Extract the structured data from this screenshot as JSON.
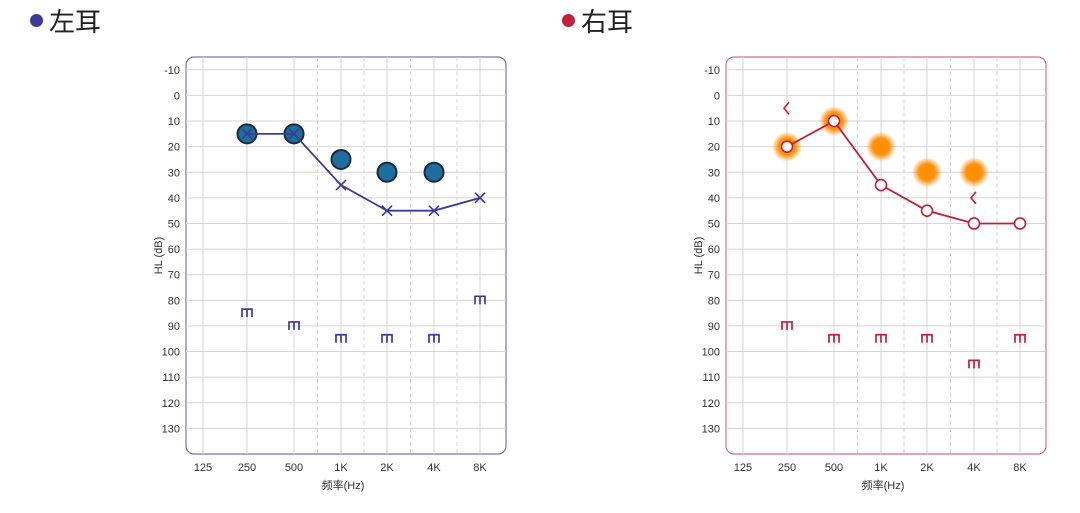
{
  "chart_data": [
    {
      "type": "line",
      "heading": "左耳",
      "xlabel": "频率(Hz)",
      "ylabel": "HL (dB)",
      "x_ticks": [
        "125",
        "250",
        "500",
        "1K",
        "2K",
        "4K",
        "8K"
      ],
      "y_ticks": [
        "-10",
        "0",
        "10",
        "20",
        "30",
        "40",
        "50",
        "60",
        "70",
        "80",
        "90",
        "100",
        "110",
        "120",
        "130"
      ],
      "ylim": [
        -15,
        140
      ],
      "y_reversed": true,
      "colors": {
        "accent": "#3b3b98",
        "border": "#7a74b8",
        "circle_fill": "#1b6e9e"
      },
      "series": [
        {
          "marker": "large-circle",
          "x": [
            "250",
            "500",
            "1K",
            "2K",
            "4K"
          ],
          "values": [
            15,
            15,
            25,
            30,
            30
          ]
        },
        {
          "marker": "x",
          "line": true,
          "x": [
            "250",
            "500",
            "1K",
            "2K",
            "4K",
            "8K"
          ],
          "values": [
            15,
            15,
            35,
            45,
            45,
            40
          ]
        },
        {
          "marker": "bracket",
          "x": [
            "250",
            "500",
            "1K",
            "2K",
            "4K",
            "8K"
          ],
          "values": [
            85,
            90,
            95,
            95,
            95,
            80
          ]
        }
      ]
    },
    {
      "type": "line",
      "heading": "右耳",
      "xlabel": "频率(Hz)",
      "ylabel": "HL (dB)",
      "x_ticks": [
        "125",
        "250",
        "500",
        "1K",
        "2K",
        "4K",
        "8K"
      ],
      "y_ticks": [
        "-10",
        "0",
        "10",
        "20",
        "30",
        "40",
        "50",
        "60",
        "70",
        "80",
        "90",
        "100",
        "110",
        "120",
        "130"
      ],
      "ylim": [
        -15,
        140
      ],
      "y_reversed": true,
      "colors": {
        "accent": "#c0203a",
        "border": "#d4728a",
        "glow": "#ff8c00"
      },
      "series": [
        {
          "marker": "glow-circle",
          "x": [
            "250",
            "500",
            "1K",
            "2K",
            "4K"
          ],
          "values": [
            20,
            10,
            20,
            30,
            30
          ]
        },
        {
          "marker": "circle",
          "line": true,
          "x": [
            "250",
            "500",
            "1K",
            "2K",
            "4K",
            "8K"
          ],
          "values": [
            20,
            10,
            35,
            45,
            50,
            50
          ]
        },
        {
          "marker": "angle",
          "x": [
            "250",
            "4K"
          ],
          "values": [
            5,
            40
          ]
        },
        {
          "marker": "bracket",
          "x": [
            "250",
            "500",
            "1K",
            "2K",
            "4K",
            "8K"
          ],
          "values": [
            90,
            95,
            95,
            95,
            105,
            95
          ]
        }
      ]
    }
  ]
}
